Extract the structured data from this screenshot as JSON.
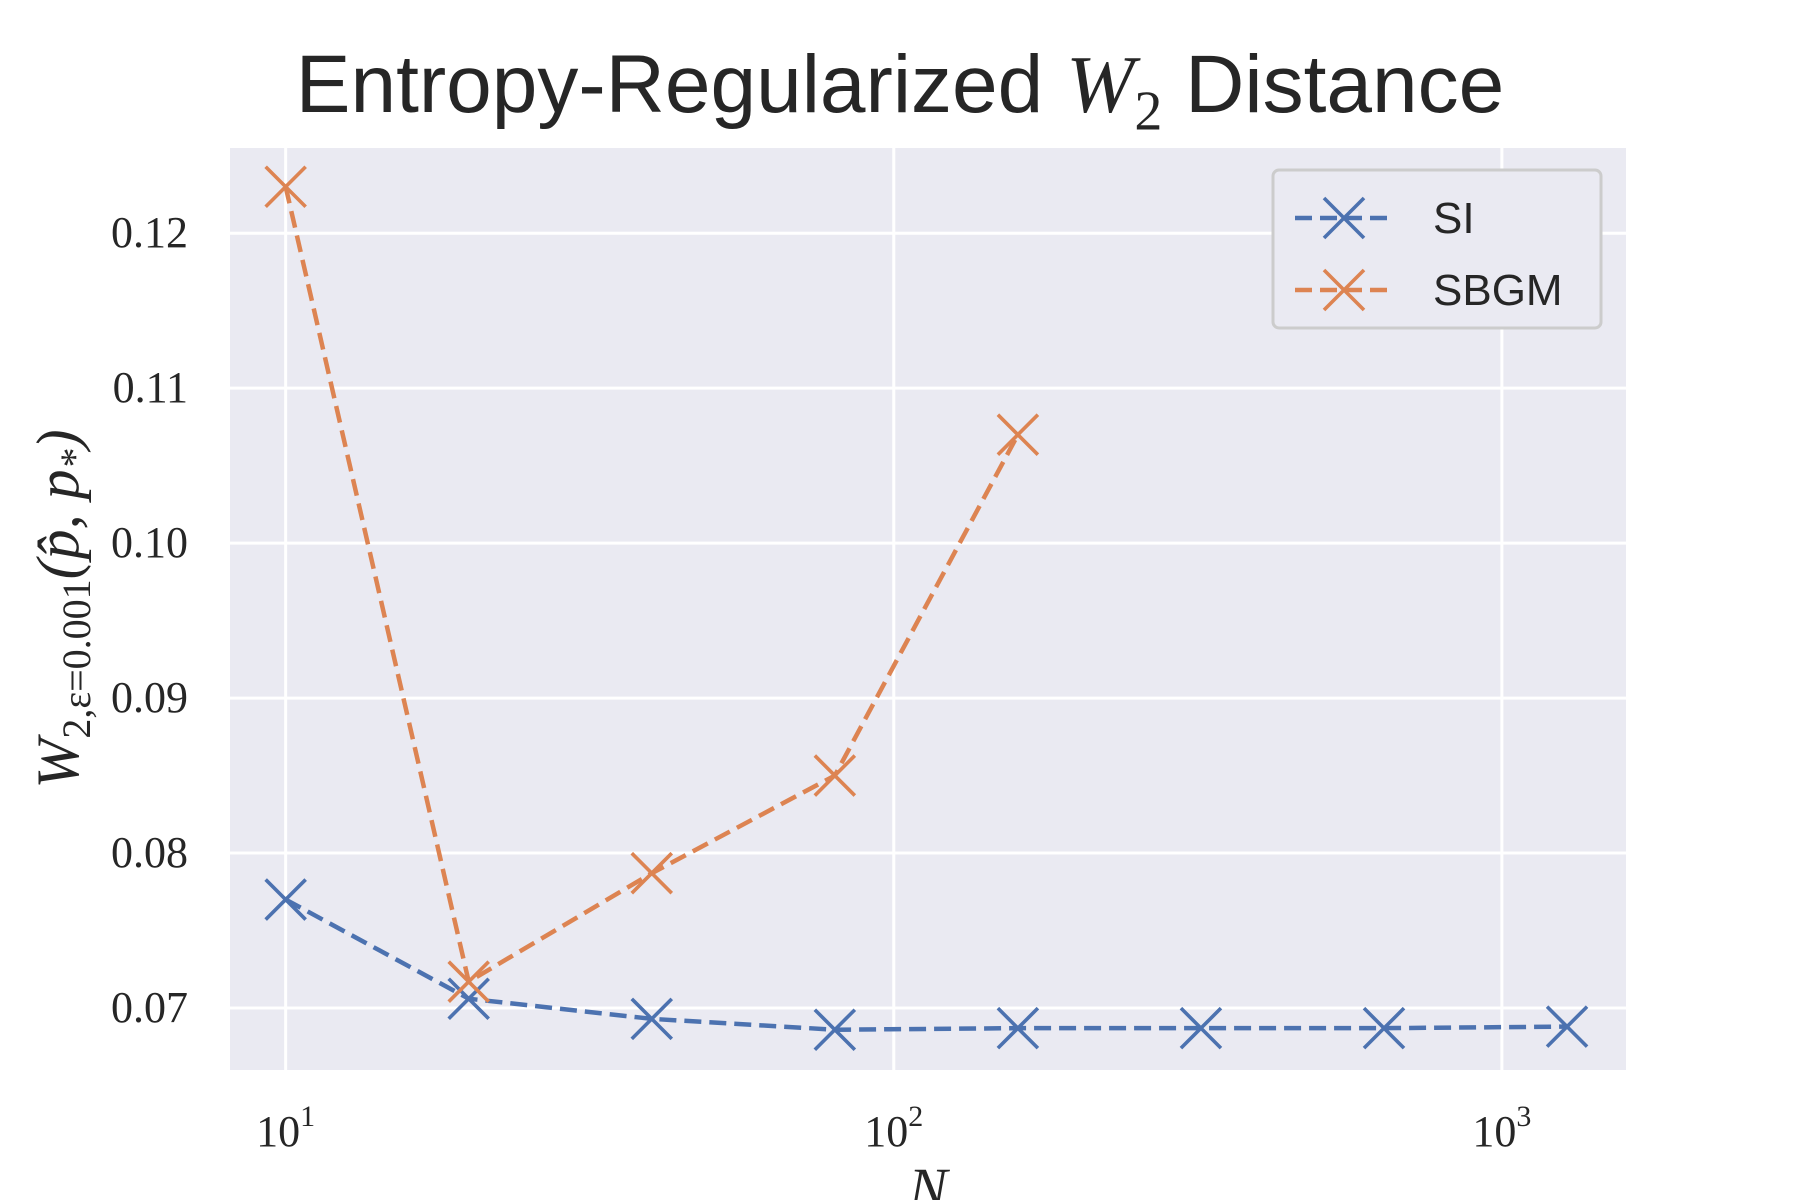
{
  "chart_data": {
    "type": "line",
    "title_prefix": "Entropy-Regularized ",
    "title_math": "W",
    "title_math_sub": "2",
    "title_suffix": " Distance",
    "xlabel": "N",
    "ylabel_main": "W",
    "ylabel_sub": "2,ε=0.001",
    "ylabel_args": "(p̂, p",
    "ylabel_args_sub": "*",
    "ylabel_close": ")",
    "xscale": "log",
    "xlim": [
      8.1,
      1600
    ],
    "ylim": [
      0.066,
      0.1255
    ],
    "grid": true,
    "legend_position": "top-right",
    "xticks": [
      {
        "value": 10,
        "base": "10",
        "exp": "1"
      },
      {
        "value": 100,
        "base": "10",
        "exp": "2"
      },
      {
        "value": 1000,
        "base": "10",
        "exp": "3"
      }
    ],
    "yticks": [
      0.07,
      0.08,
      0.09,
      0.1,
      0.11,
      0.12
    ],
    "ytick_labels": [
      "0.07",
      "0.08",
      "0.09",
      "0.10",
      "0.11",
      "0.12"
    ],
    "series": [
      {
        "name": "SI",
        "color": "#4c72b0",
        "x": [
          10,
          20,
          40,
          80,
          160,
          320,
          640,
          1280
        ],
        "y": [
          0.077,
          0.0706,
          0.0693,
          0.0686,
          0.0687,
          0.0687,
          0.0687,
          0.0688
        ]
      },
      {
        "name": "SBGM",
        "color": "#dd8452",
        "x": [
          10,
          20,
          40,
          80,
          160
        ],
        "y": [
          0.123,
          0.0717,
          0.0787,
          0.085,
          0.107
        ]
      }
    ]
  }
}
